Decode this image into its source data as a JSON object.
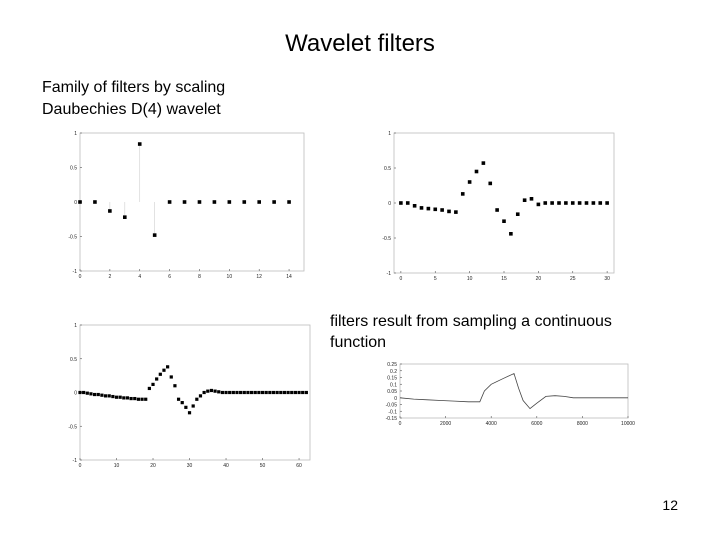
{
  "slide": {
    "title": "Wavelet filters",
    "bullets": [
      "Family of filters by scaling",
      "Daubechies D(4) wavelet"
    ],
    "note": "filters result from sampling a continuous function",
    "page_number": "12"
  },
  "chart_data": [
    {
      "type": "scatter",
      "xlim": [
        0,
        15
      ],
      "ylim": [
        -1,
        1
      ],
      "xticks": [
        "0",
        "2",
        "4",
        "6",
        "8",
        "10",
        "12",
        "14"
      ],
      "yticks": [
        "1",
        "0.5",
        "0",
        "-0.5",
        "-1"
      ],
      "stems": true,
      "x": [
        0,
        1,
        2,
        3,
        4,
        5,
        6,
        7,
        8,
        9,
        10,
        11,
        12,
        13,
        14
      ],
      "y": [
        0,
        0,
        -0.13,
        -0.22,
        0.84,
        -0.48,
        0,
        0,
        0,
        0,
        0,
        0,
        0,
        0,
        0
      ]
    },
    {
      "type": "scatter",
      "xlim": [
        -1,
        31
      ],
      "ylim": [
        -1,
        1
      ],
      "xticks": [
        "0",
        "5",
        "10",
        "15",
        "20",
        "25",
        "30"
      ],
      "yticks": [
        "1",
        "0.5",
        "0",
        "-0.5",
        "-1"
      ],
      "x": [
        0,
        1,
        2,
        3,
        4,
        5,
        6,
        7,
        8,
        9,
        10,
        11,
        12,
        13,
        14,
        15,
        16,
        17,
        18,
        19,
        20,
        21,
        22,
        23,
        24,
        25,
        26,
        27,
        28,
        29,
        30
      ],
      "y": [
        0,
        0,
        -0.04,
        -0.07,
        -0.08,
        -0.09,
        -0.1,
        -0.12,
        -0.13,
        0.13,
        0.3,
        0.45,
        0.57,
        0.28,
        -0.1,
        -0.26,
        -0.44,
        -0.16,
        0.04,
        0.06,
        -0.02,
        0,
        0,
        0,
        0,
        0,
        0,
        0,
        0,
        0,
        0
      ]
    },
    {
      "type": "scatter",
      "xlim": [
        0,
        63
      ],
      "ylim": [
        -1,
        1
      ],
      "xticks": [
        "0",
        "10",
        "20",
        "30",
        "40",
        "50",
        "60"
      ],
      "yticks": [
        "1",
        "0.5",
        "0",
        "-0.5",
        "-1"
      ],
      "x": [
        0,
        1,
        2,
        3,
        4,
        5,
        6,
        7,
        8,
        9,
        10,
        11,
        12,
        13,
        14,
        15,
        16,
        17,
        18,
        19,
        20,
        21,
        22,
        23,
        24,
        25,
        26,
        27,
        28,
        29,
        30,
        31,
        32,
        33,
        34,
        35,
        36,
        37,
        38,
        39,
        40,
        41,
        42,
        43,
        44,
        45,
        46,
        47,
        48,
        49,
        50,
        51,
        52,
        53,
        54,
        55,
        56,
        57,
        58,
        59,
        60,
        61,
        62
      ],
      "y": [
        0,
        0,
        -0.01,
        -0.02,
        -0.03,
        -0.03,
        -0.04,
        -0.05,
        -0.05,
        -0.06,
        -0.07,
        -0.07,
        -0.08,
        -0.08,
        -0.09,
        -0.09,
        -0.1,
        -0.1,
        -0.1,
        0.06,
        0.12,
        0.2,
        0.27,
        0.33,
        0.38,
        0.23,
        0.1,
        -0.1,
        -0.15,
        -0.22,
        -0.3,
        -0.2,
        -0.1,
        -0.05,
        0,
        0.02,
        0.03,
        0.02,
        0.01,
        0,
        0,
        0,
        0,
        0,
        0,
        0,
        0,
        0,
        0,
        0,
        0,
        0,
        0,
        0,
        0,
        0,
        0,
        0,
        0,
        0,
        0,
        0,
        0
      ]
    },
    {
      "type": "line",
      "xlim": [
        0,
        10000
      ],
      "ylim": [
        -0.15,
        0.25
      ],
      "xticks": [
        "0",
        "2000",
        "4000",
        "6000",
        "8000",
        "10000"
      ],
      "yticks": [
        "0.25",
        "0.2",
        "0.15",
        "0.1",
        "0.05",
        "0",
        "-0.05",
        "-0.1",
        "-0.15"
      ],
      "x": [
        0,
        600,
        1200,
        1800,
        2400,
        3000,
        3500,
        3700,
        4000,
        4500,
        5000,
        5200,
        5400,
        5700,
        6000,
        6400,
        6800,
        7200,
        7600,
        8000,
        9000,
        10000
      ],
      "y": [
        0,
        -0.01,
        -0.015,
        -0.02,
        -0.025,
        -0.03,
        -0.03,
        0.05,
        0.1,
        0.14,
        0.18,
        0.07,
        -0.02,
        -0.08,
        -0.04,
        0.01,
        0.015,
        0.01,
        0,
        0,
        0,
        0
      ]
    }
  ]
}
